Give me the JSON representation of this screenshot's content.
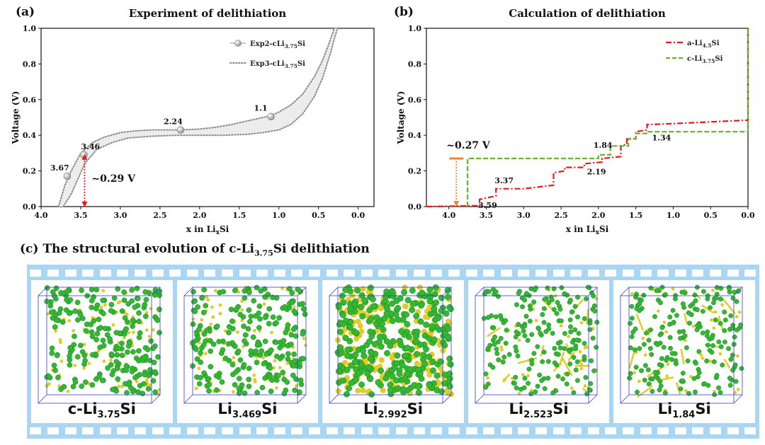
{
  "chart_data": [
    {
      "panel": "(a)",
      "type": "line",
      "title": "Experiment of delithiation",
      "xlabel": "x in LixSi",
      "ylabel": "Voltage (V)",
      "xlim": [
        4.0,
        -0.2
      ],
      "ylim": [
        0.0,
        1.0
      ],
      "xticks": [
        "4.0",
        "3.5",
        "3.0",
        "2.5",
        "2.0",
        "1.5",
        "1.0",
        "0.5",
        "0.0"
      ],
      "yticks": [
        "0.0",
        "0.2",
        "0.4",
        "0.6",
        "0.8",
        "1.0"
      ],
      "legend": [
        {
          "label": "Exp2-cLi3.75Si",
          "style": "line-with-sphere",
          "color": "#b3b3b3"
        },
        {
          "label": "Exp3-cLi3.75Si",
          "style": "dotted",
          "color": "#8c8c8c"
        }
      ],
      "series": [
        {
          "name": "Exp2-cLi3.75Si upper",
          "x": [
            3.78,
            3.7,
            3.62,
            3.5,
            3.35,
            3.2,
            3.0,
            2.8,
            2.6,
            2.24,
            2.0,
            1.8,
            1.6,
            1.4,
            1.2,
            1.1,
            1.0,
            0.85,
            0.7,
            0.55,
            0.45,
            0.38,
            0.3
          ],
          "y": [
            0.0,
            0.12,
            0.2,
            0.3,
            0.36,
            0.39,
            0.415,
            0.425,
            0.43,
            0.43,
            0.435,
            0.445,
            0.46,
            0.48,
            0.5,
            0.51,
            0.53,
            0.57,
            0.63,
            0.73,
            0.82,
            0.9,
            1.0
          ]
        },
        {
          "name": "Exp3-cLi3.75Si lower",
          "x": [
            3.72,
            3.62,
            3.55,
            3.45,
            3.3,
            3.1,
            2.9,
            2.6,
            2.3,
            2.0,
            1.7,
            1.4,
            1.2,
            1.0,
            0.85,
            0.7,
            0.55,
            0.45,
            0.35,
            0.3,
            0.26
          ],
          "y": [
            0.0,
            0.07,
            0.14,
            0.24,
            0.32,
            0.36,
            0.385,
            0.395,
            0.4,
            0.4,
            0.4,
            0.405,
            0.415,
            0.43,
            0.46,
            0.52,
            0.62,
            0.72,
            0.86,
            0.94,
            1.0
          ]
        }
      ],
      "points": [
        {
          "x": 3.67,
          "y": 0.17,
          "label": "3.67"
        },
        {
          "x": 3.46,
          "y": 0.29,
          "label": "3.46"
        },
        {
          "x": 2.24,
          "y": 0.43,
          "label": "2.24"
        },
        {
          "x": 1.1,
          "y": 0.505,
          "label": "1.1"
        }
      ],
      "annotation": {
        "text": "~0.29 V",
        "x": 3.46,
        "y0": 0.0,
        "y1": 0.29,
        "color": "#e8191f"
      }
    },
    {
      "panel": "(b)",
      "type": "line",
      "title": "Calculation of delithiation",
      "xlabel": "x in LixSi",
      "ylabel": "Voltage (V)",
      "xlim": [
        4.3,
        0.0
      ],
      "ylim": [
        0.0,
        1.0
      ],
      "xticks": [
        "4.0",
        "3.5",
        "3.0",
        "2.5",
        "2.0",
        "1.5",
        "1.0",
        "0.5",
        "0.0"
      ],
      "yticks": [
        "0.0",
        "0.2",
        "0.4",
        "0.6",
        "0.8",
        "1.0"
      ],
      "legend": [
        {
          "label": "a-Li4.5Si",
          "style": "dash-dot",
          "color": "#e8191f"
        },
        {
          "label": "c-Li3.75Si",
          "style": "dashed",
          "color": "#66b32e"
        }
      ],
      "series": [
        {
          "name": "a-Li4.5Si",
          "color": "#e8191f",
          "x": [
            4.3,
            3.59,
            3.59,
            3.37,
            3.37,
            3.2,
            3.0,
            2.8,
            2.6,
            2.6,
            2.45,
            2.45,
            2.19,
            2.19,
            1.95,
            1.95,
            1.7,
            1.7,
            1.62,
            1.62,
            1.5,
            1.5,
            1.35,
            1.35,
            1.0,
            0.5,
            0.0,
            0.0
          ],
          "y": [
            0.0,
            0.005,
            0.04,
            0.06,
            0.1,
            0.1,
            0.1,
            0.11,
            0.12,
            0.19,
            0.2,
            0.22,
            0.22,
            0.24,
            0.25,
            0.27,
            0.28,
            0.34,
            0.35,
            0.38,
            0.38,
            0.42,
            0.43,
            0.46,
            0.465,
            0.475,
            0.485,
            1.0
          ]
        },
        {
          "name": "c-Li3.75Si",
          "color": "#66b32e",
          "x": [
            3.75,
            3.75,
            2.0,
            2.0,
            1.84,
            1.84,
            1.6,
            1.6,
            1.5,
            1.5,
            1.34,
            1.34,
            0.0,
            0.0
          ],
          "y": [
            0.0,
            0.27,
            0.27,
            0.29,
            0.29,
            0.34,
            0.34,
            0.38,
            0.38,
            0.41,
            0.41,
            0.42,
            0.42,
            1.0
          ]
        }
      ],
      "point_labels": [
        {
          "text": "3.59",
          "x": 3.59,
          "y": 0.04,
          "color": "#c0141c"
        },
        {
          "text": "3.37",
          "x": 3.37,
          "y": 0.1,
          "color": "#c0141c"
        },
        {
          "text": "2.19",
          "x": 2.19,
          "y": 0.22,
          "color": "#c0141c"
        },
        {
          "text": "1.84",
          "x": 1.84,
          "y": 0.29,
          "color": "#1fa34a"
        },
        {
          "text": "1.34",
          "x": 1.34,
          "y": 0.41,
          "color": "#1fa34a"
        }
      ],
      "annotation": {
        "text": "~0.27 V",
        "x": 3.9,
        "y0": 0.0,
        "y1": 0.27,
        "color": "#f0852d"
      }
    }
  ],
  "panel_c": {
    "label": "(c)",
    "title_pre": "The structural evolution of c-Li",
    "title_sub": "3.75",
    "title_post": "Si delithiation",
    "frames": [
      {
        "pre": "c-Li",
        "sub": "3.75",
        "post": "Si",
        "density": "high"
      },
      {
        "pre": "Li",
        "sub": "3.469",
        "post": "Si",
        "density": "high"
      },
      {
        "pre": "Li",
        "sub": "2.992",
        "post": "Si",
        "density": "very-high"
      },
      {
        "pre": "Li",
        "sub": "2.523",
        "post": "Si",
        "density": "medium"
      },
      {
        "pre": "Li",
        "sub": "1.84",
        "post": "Si",
        "density": "medium"
      }
    ],
    "colors": {
      "li_atom": "#33b833",
      "si_atom": "#e0cc26",
      "film": "#a9d6f2",
      "box": "#3a3ad9"
    }
  }
}
